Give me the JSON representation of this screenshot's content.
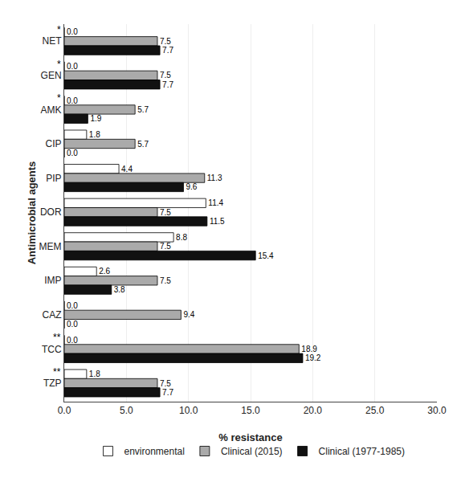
{
  "chart_data": {
    "type": "bar",
    "orientation": "horizontal",
    "categories": [
      "NET",
      "GEN",
      "AMK",
      "CIP",
      "PIP",
      "DOR",
      "MEM",
      "IMP",
      "CAZ",
      "TCC",
      "TZP"
    ],
    "series": [
      {
        "name": "environmental",
        "color": "#FFFFFF",
        "values": [
          0.0,
          0.0,
          0.0,
          1.8,
          4.4,
          11.4,
          8.8,
          2.6,
          0.0,
          0.0,
          1.8
        ],
        "value_labels": [
          "0.0",
          "0.0",
          "0.0",
          "1.8",
          "4.4",
          "11.4",
          "8.8",
          "2.6",
          "0.0",
          "0.0",
          "1.8"
        ]
      },
      {
        "name": "Clinical (2015)",
        "color": "#AAAAAA",
        "values": [
          7.5,
          7.5,
          5.7,
          5.7,
          11.3,
          7.5,
          7.5,
          7.5,
          9.4,
          18.9,
          7.5
        ],
        "value_labels": [
          "7.5",
          "7.5",
          "5.7",
          "5.7",
          "11.3",
          "7.5",
          "7.5",
          "7.5",
          "9.4",
          "18.9",
          "7.5"
        ]
      },
      {
        "name": "Clinical (1977-1985)",
        "color": "#111111",
        "values": [
          7.7,
          7.7,
          1.9,
          0.0,
          9.6,
          11.5,
          15.4,
          3.8,
          0.0,
          19.2,
          7.7
        ],
        "value_labels": [
          "7.7",
          "7.7",
          "1.9",
          "0.0",
          "9.6",
          "11.5",
          "15.4",
          "3.8",
          "0.0",
          "19.2",
          "7.7"
        ]
      }
    ],
    "annotations": [
      {
        "category": "NET",
        "text": "*"
      },
      {
        "category": "GEN",
        "text": "*"
      },
      {
        "category": "AMK",
        "text": "*"
      },
      {
        "category": "TCC",
        "text": "**"
      },
      {
        "category": "TZP",
        "text": "**"
      }
    ],
    "xlabel": "% resistance",
    "ylabel": "Antimicrobial agents",
    "xlim": [
      0.0,
      30.0
    ],
    "xticks": [
      {
        "value": 0,
        "label": "0.0"
      },
      {
        "value": 5,
        "label": "5.0"
      },
      {
        "value": 10,
        "label": "10.0"
      },
      {
        "value": 15,
        "label": "15.0"
      },
      {
        "value": 20,
        "label": "20.0"
      },
      {
        "value": 25,
        "label": "25.0"
      },
      {
        "value": 30,
        "label": "30.0"
      }
    ],
    "grid": true,
    "data_labels": true,
    "legend": "bottom"
  }
}
